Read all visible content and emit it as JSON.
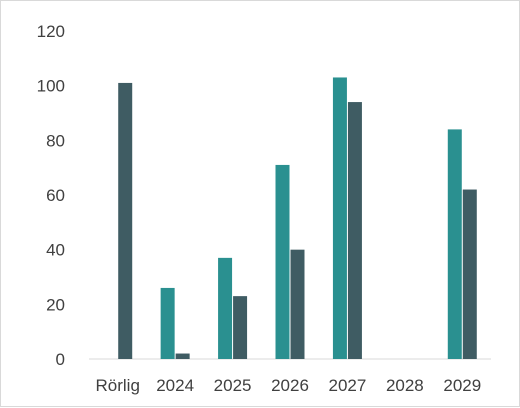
{
  "chart_data": {
    "type": "bar",
    "categories": [
      "Rörlig",
      "2024",
      "2025",
      "2026",
      "2027",
      "2028",
      "2029"
    ],
    "series": [
      {
        "values": [
          null,
          26,
          37,
          71,
          103,
          null,
          84
        ],
        "color": "#2a9090"
      },
      {
        "values": [
          101,
          2,
          23,
          40,
          94,
          null,
          62
        ],
        "color": "#3f5c63"
      }
    ],
    "ylim": [
      0,
      120
    ],
    "yticks": [
      0,
      20,
      40,
      60,
      80,
      100,
      120
    ],
    "grid": false,
    "title": "",
    "xlabel": "",
    "ylabel": ""
  }
}
